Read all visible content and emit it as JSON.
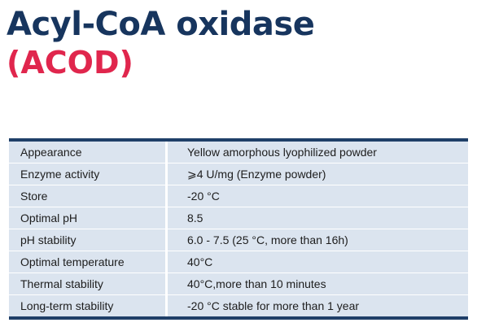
{
  "title": "Acyl-CoA oxidase",
  "subtitle": "(ACOD)",
  "colors": {
    "title": "#17355e",
    "subtitle": "#e0264d",
    "table_background": "#dbe4ef",
    "table_rule": "#1f3f68"
  },
  "specs": [
    {
      "label": "Appearance",
      "value": "Yellow amorphous lyophilized powder"
    },
    {
      "label": "Enzyme activity",
      "value": "⩾4 U/mg (Enzyme powder)"
    },
    {
      "label": "Store",
      "value": "-20 °C"
    },
    {
      "label": "Optimal pH",
      "value": "8.5"
    },
    {
      "label": "pH stability",
      "value": "6.0 - 7.5 (25 °C, more than 16h)"
    },
    {
      "label": "Optimal temperature",
      "value": "40°C"
    },
    {
      "label": "Thermal stability",
      "value": "40°C,more than 10 minutes"
    },
    {
      "label": "Long-term stability",
      "value": "-20 °C stable for more than 1 year"
    }
  ]
}
